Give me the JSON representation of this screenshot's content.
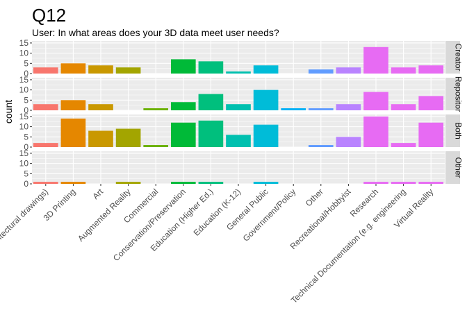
{
  "chart_data": {
    "type": "bar",
    "title": "Q12",
    "subtitle": "User: In what areas does your 3D data meet user needs?",
    "xlabel": "",
    "ylabel": "count",
    "ylim": [
      0,
      16
    ],
    "yticks": [
      0,
      5,
      10,
      15
    ],
    "grid": true,
    "legend": "none",
    "categories": [
      "Architectural drawings)",
      "3D Printing",
      "Art",
      "Augmented Reality",
      "Commercial",
      "Conservation/Preservation",
      "Education (Higher Ed.)",
      "Education (K-12)",
      "General Public",
      "Government/Policy",
      "Other",
      "Recreational/Hobbyist",
      "Research",
      "Technical Documentation (e.g. engineering",
      "Virtual Reality"
    ],
    "category_labels_visible": [
      "itectural drawings)",
      "3D Printing",
      "Art",
      "Augmented Reality",
      "Commercial",
      "Conservation/Preservation",
      "Education (Higher Ed.)",
      "Education (K-12)",
      "General Public",
      "Government/Policy",
      "Other",
      "Recreational/Hobbyist",
      "Research",
      "Technical Documentation (e.g. engineering",
      "Virtual Reality"
    ],
    "colors": [
      "#F8766D",
      "#E58700",
      "#C99800",
      "#A3A500",
      "#6BB100",
      "#00BA38",
      "#00BF7D",
      "#00C0AF",
      "#00BCD8",
      "#00B0F6",
      "#619CFF",
      "#B983FF",
      "#E76BF3",
      "#FD61D1",
      "#FF67A4"
    ],
    "bar_colors": [
      "#F8766D",
      "#E58700",
      "#C99800",
      "#A3A500",
      "#6BB100",
      "#00BA38",
      "#00BF7D",
      "#00C0AF",
      "#00BCD8",
      "#00B0F6",
      "#619CFF",
      "#B983FF",
      "#E76BF3",
      "#E76BF3",
      "#E76BF3"
    ],
    "facets": [
      {
        "label": "Creator",
        "values": [
          3,
          5,
          4,
          3,
          0,
          7,
          6,
          1,
          4,
          0,
          2,
          3,
          13,
          3,
          4
        ]
      },
      {
        "label": "Repository",
        "values": [
          3,
          5,
          3,
          0,
          1,
          4,
          8,
          3,
          10,
          1,
          1,
          3,
          9,
          3,
          7
        ]
      },
      {
        "label": "Both",
        "values": [
          2,
          14,
          8,
          9,
          1,
          12,
          13,
          6,
          11,
          0,
          1,
          5,
          15,
          2,
          12
        ]
      },
      {
        "label": "Other",
        "values": [
          1,
          1,
          0,
          1,
          0,
          1,
          1,
          0,
          1,
          0,
          0,
          0,
          1,
          1,
          1
        ]
      }
    ],
    "facet_labels_visible": [
      "Creator",
      "Repositor",
      "Both",
      "Other"
    ]
  }
}
